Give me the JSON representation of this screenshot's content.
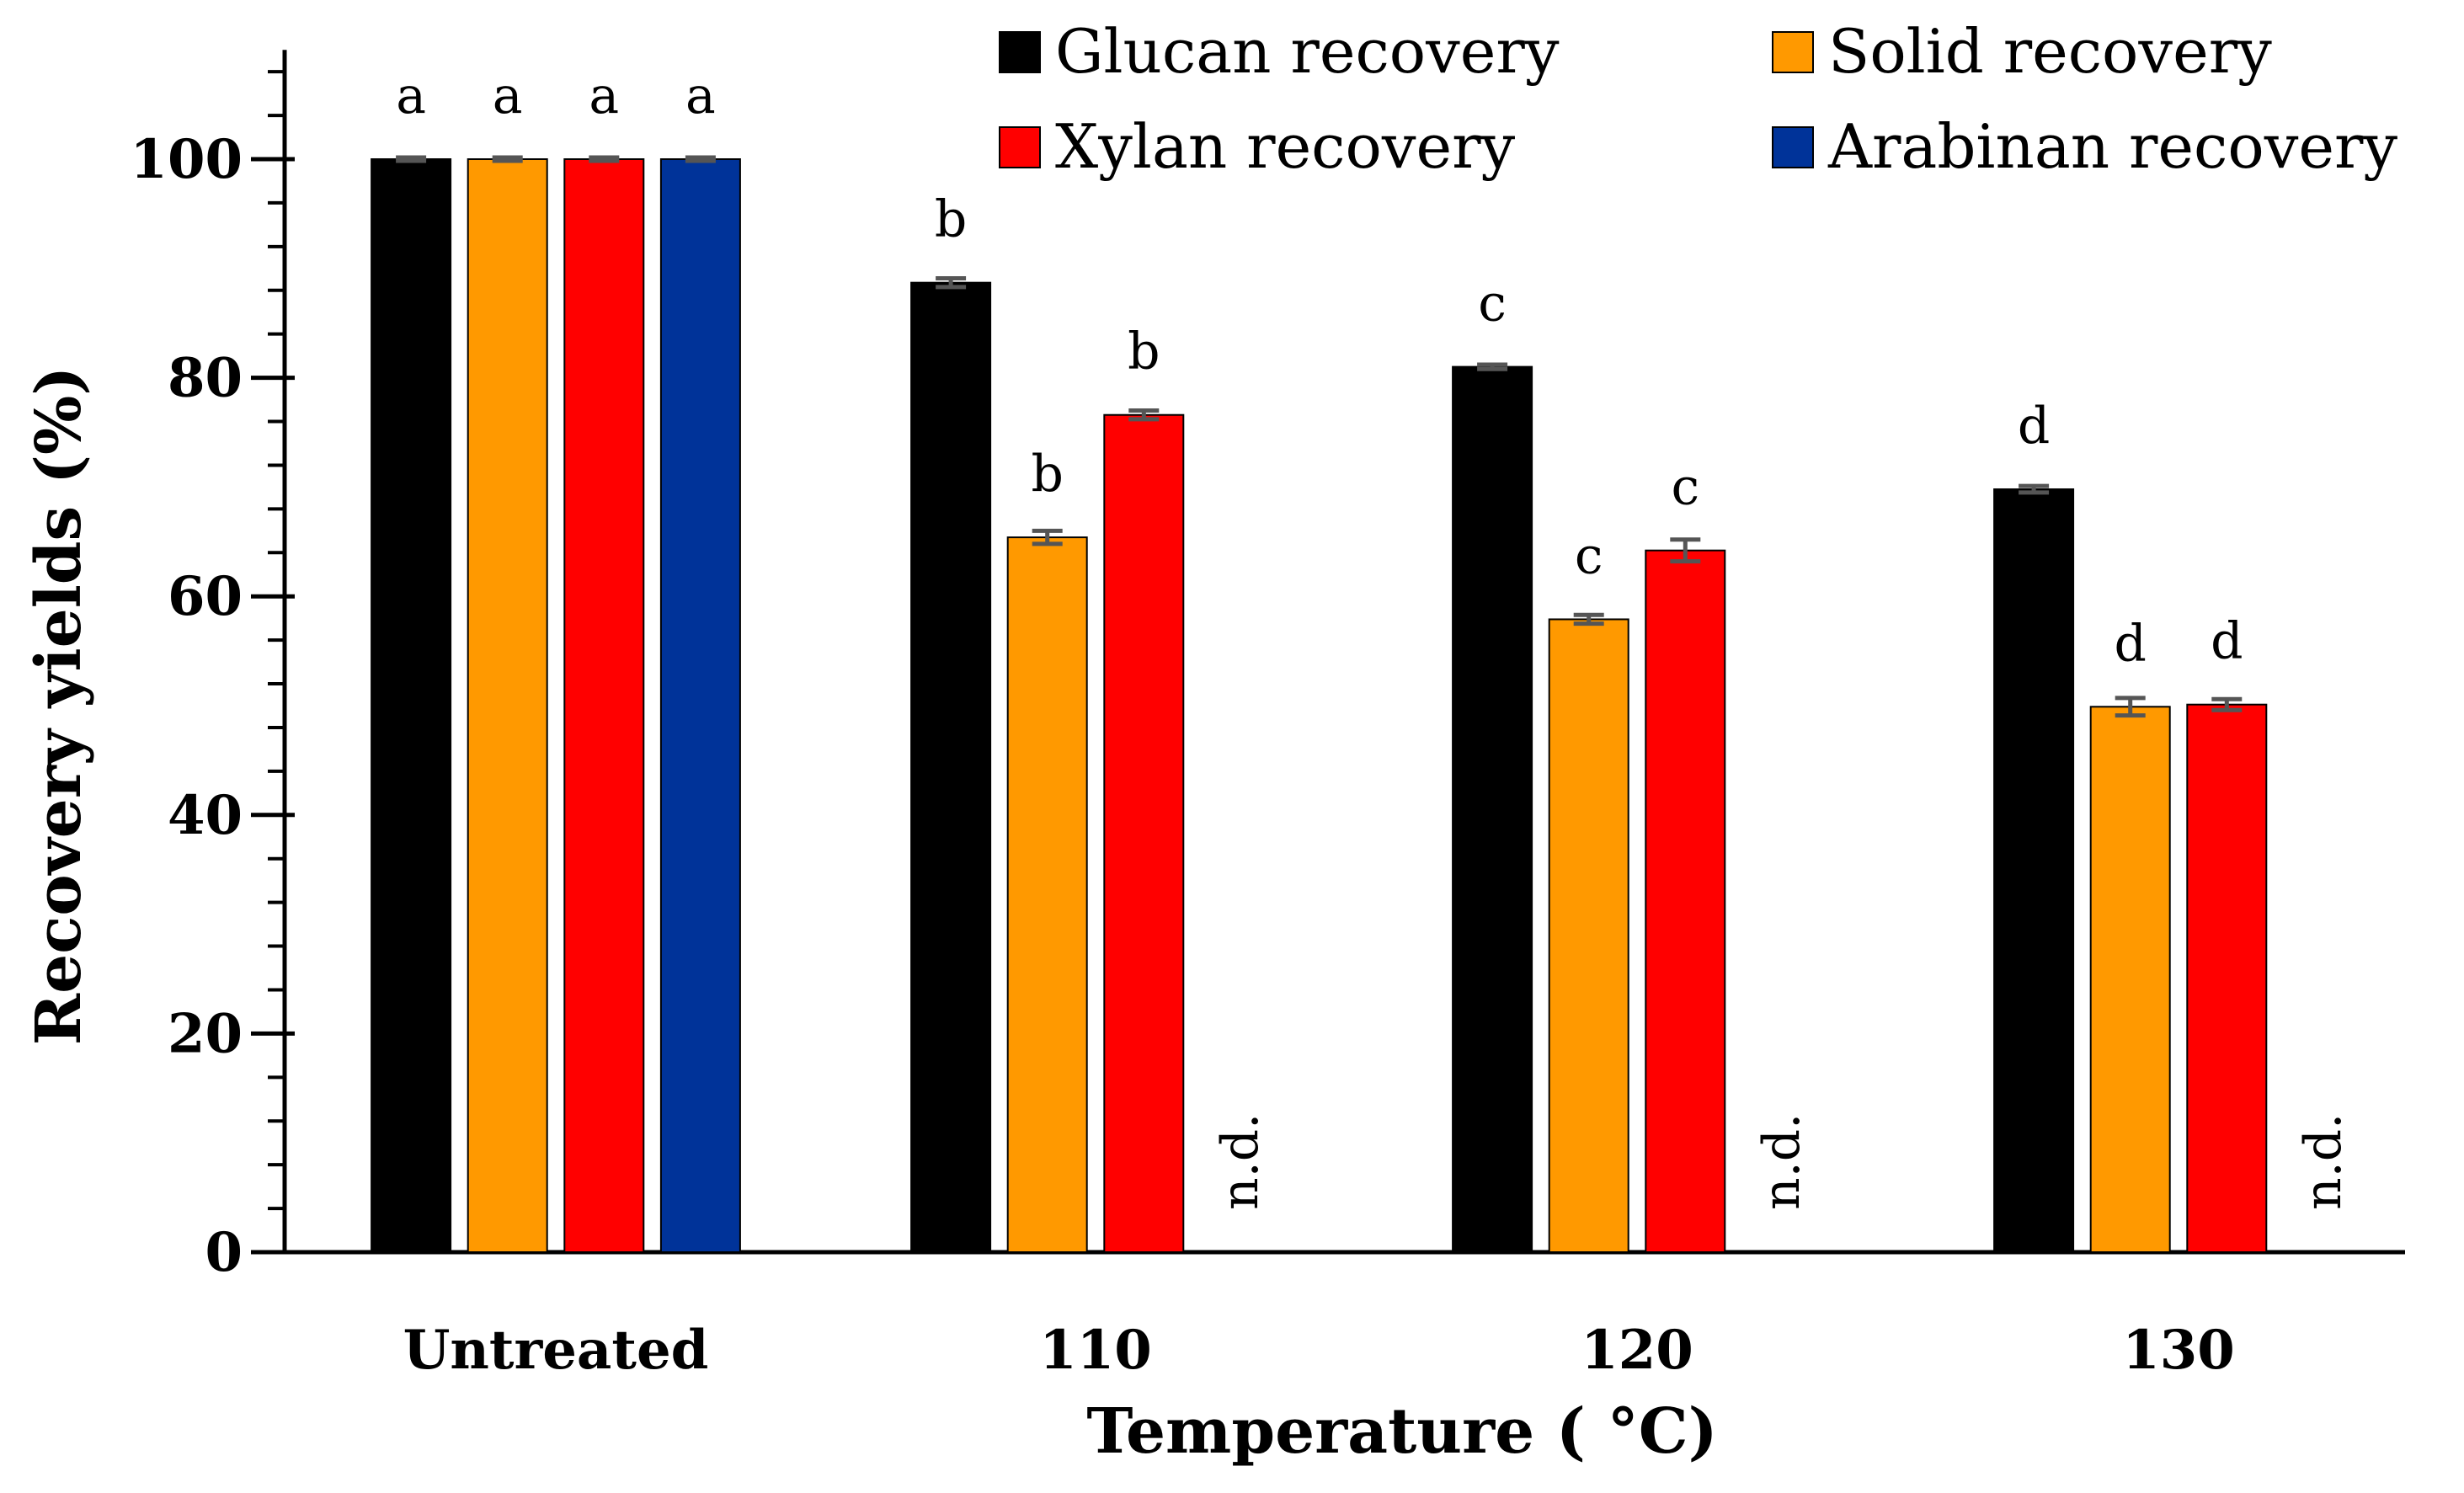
{
  "chart_data": {
    "type": "bar",
    "title": "",
    "xlabel": "Temperature ( °C)",
    "ylabel": "Recovery yields (%)",
    "ylim": [
      0,
      110
    ],
    "yticks": [
      0,
      20,
      40,
      60,
      80,
      100
    ],
    "minor_tick_step": 4,
    "grid": false,
    "legend_position": "top-right",
    "categories": [
      "Untreated",
      "110",
      "120",
      "130"
    ],
    "series": [
      {
        "name": "Glucan recovery",
        "color": "#000000",
        "values": [
          100,
          88.7,
          81.0,
          69.8
        ],
        "errors": [
          0.1,
          0.4,
          0.2,
          0.3
        ],
        "letters": [
          "a",
          "b",
          "c",
          "d"
        ]
      },
      {
        "name": "Solid recovery",
        "color": "#FF9900",
        "values": [
          100,
          65.4,
          57.9,
          49.9
        ],
        "errors": [
          0.1,
          0.6,
          0.4,
          0.8
        ],
        "letters": [
          "a",
          "b",
          "c",
          "d"
        ]
      },
      {
        "name": "Xylan recovery",
        "color": "#FF0000",
        "values": [
          100,
          76.6,
          64.2,
          50.1
        ],
        "errors": [
          0.1,
          0.4,
          1.0,
          0.5
        ],
        "letters": [
          "a",
          "b",
          "c",
          "d"
        ]
      },
      {
        "name": "Arabinan recovery",
        "color": "#003399",
        "values": [
          100,
          0,
          0,
          0
        ],
        "errors": [
          0.1,
          0,
          0,
          0
        ],
        "letters": [
          "a",
          "n.d.",
          "n.d.",
          "n.d."
        ]
      }
    ]
  }
}
